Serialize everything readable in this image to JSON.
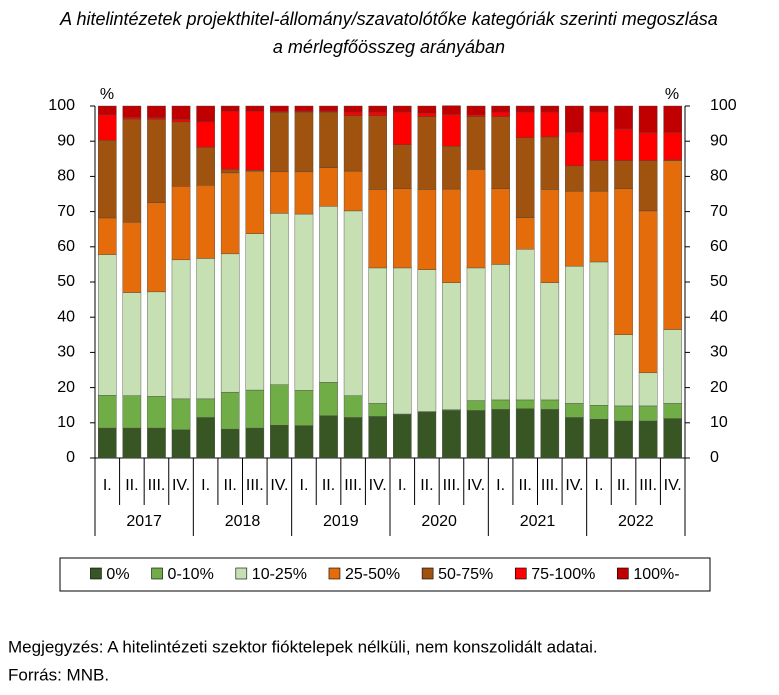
{
  "chart_data": {
    "type": "stacked-bar",
    "title": [
      "A hitelintézetek projekthitel-állomány/szavatolótőke kategóriák szerinti megoszlása",
      "a mérlegfőösszeg arányában"
    ],
    "y_unit": "%",
    "y2_unit": "%",
    "categories": [
      "I.",
      "II.",
      "III.",
      "IV.",
      "I.",
      "II.",
      "III.",
      "IV.",
      "I.",
      "II.",
      "III.",
      "IV.",
      "I.",
      "II.",
      "III.",
      "IV.",
      "I.",
      "II.",
      "III.",
      "IV.",
      "I.",
      "II.",
      "III.",
      "IV."
    ],
    "groups": [
      "2017",
      "2018",
      "2019",
      "2020",
      "2021",
      "2022"
    ],
    "ylim": [
      0,
      100
    ],
    "yticks": [
      0,
      10,
      20,
      30,
      40,
      50,
      60,
      70,
      80,
      90,
      100
    ],
    "y2lim": [
      0,
      100
    ],
    "y2ticks": [
      0,
      10,
      20,
      30,
      40,
      50,
      60,
      70,
      80,
      90,
      100
    ],
    "series": [
      {
        "name": "0%",
        "color": "#375623",
        "values": [
          8.5,
          8.5,
          8.5,
          8,
          11.5,
          8.2,
          8.5,
          9.3,
          9.2,
          12,
          11.5,
          11.8,
          12.3,
          13,
          13.5,
          13.5,
          13.8,
          14,
          13.8,
          11.5,
          11,
          10.5,
          10.5,
          11.2
        ]
      },
      {
        "name": "0-10%",
        "color": "#70ad47",
        "values": [
          9.3,
          9.2,
          9,
          8.8,
          5.3,
          10.5,
          10.8,
          11.5,
          10,
          9.5,
          6.2,
          3.7,
          0.2,
          0.2,
          0.2,
          2.8,
          2.7,
          2.5,
          2.7,
          4,
          4,
          4.3,
          4.3,
          4.3
        ]
      },
      {
        "name": "10-25%",
        "color": "#c6e0b4",
        "values": [
          40,
          29.3,
          29.7,
          39.5,
          39.9,
          39.3,
          44.4,
          48.7,
          50.1,
          50,
          52.5,
          38.5,
          41.5,
          40.3,
          36.1,
          37.7,
          38.5,
          42.8,
          33.3,
          39,
          40.7,
          20.2,
          9.4,
          21
        ]
      },
      {
        "name": "25-50%",
        "color": "#e46c0a",
        "values": [
          10.4,
          20,
          25.3,
          20.9,
          20.8,
          23,
          17.8,
          11.8,
          12,
          11,
          11.3,
          22.3,
          22.5,
          22.8,
          26.6,
          28,
          21.5,
          9,
          26.5,
          21.3,
          20.1,
          41.5,
          46,
          48
        ]
      },
      {
        "name": "50-75%",
        "color": "#a0520f",
        "values": [
          22.1,
          29.3,
          23.7,
          18.3,
          10.8,
          1,
          0.3,
          16.9,
          17,
          15.8,
          15.8,
          21,
          12.5,
          20.7,
          12.2,
          15,
          20.5,
          22.7,
          14.9,
          7.2,
          8.7,
          8,
          14.3,
          0.2
        ]
      },
      {
        "name": "75-100%",
        "color": "#ff0000",
        "values": [
          7.2,
          0.5,
          0.5,
          0.7,
          7.2,
          16.5,
          16.7,
          0.3,
          0.3,
          0.3,
          1,
          1,
          9.3,
          1,
          9,
          0.5,
          1.3,
          7.3,
          7.1,
          9.5,
          13.8,
          9,
          8,
          7.8
        ]
      },
      {
        "name": "100%-",
        "color": "#c00000",
        "values": [
          2.5,
          3.2,
          3.3,
          3.8,
          4.5,
          1.5,
          1.5,
          1.5,
          1.4,
          1.4,
          1.7,
          1.7,
          1.7,
          2,
          2.5,
          2.5,
          1.7,
          1.7,
          1.7,
          7.5,
          1.7,
          6.5,
          7.5,
          7.5
        ]
      }
    ],
    "note": "Megjegyzés: A hitelintézeti szektor fióktelepek nélküli, nem konszolidált adatai.",
    "source": "Forrás: MNB."
  }
}
